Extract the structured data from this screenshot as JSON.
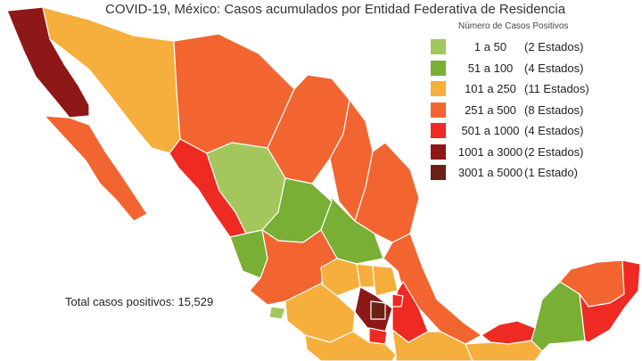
{
  "title": "COVID-19, México: Casos acumulados por Entidad Federativa de Residencia",
  "legend": {
    "title": "Número de Casos Positivos",
    "items": [
      {
        "range": "1 a 50",
        "count": "(2 Estados)",
        "color": "#a3c75c"
      },
      {
        "range": "51 a 100",
        "count": "(4 Estados)",
        "color": "#78af34"
      },
      {
        "range": "101 a 250",
        "count": "(11 Estados)",
        "color": "#f6ae3c"
      },
      {
        "range": "251 a 500",
        "count": "(8 Estados)",
        "color": "#f26530"
      },
      {
        "range": "501 a 1000",
        "count": "(4 Estados)",
        "color": "#ee2a22"
      },
      {
        "range": "1001 a 3000",
        "count": "(2 Estados)",
        "color": "#8e1718"
      },
      {
        "range": "3001 a 5000",
        "count": "(1 Estado)",
        "color": "#6b2018"
      }
    ]
  },
  "total": {
    "label": "Total casos positivos:",
    "value": "15,529"
  }
}
